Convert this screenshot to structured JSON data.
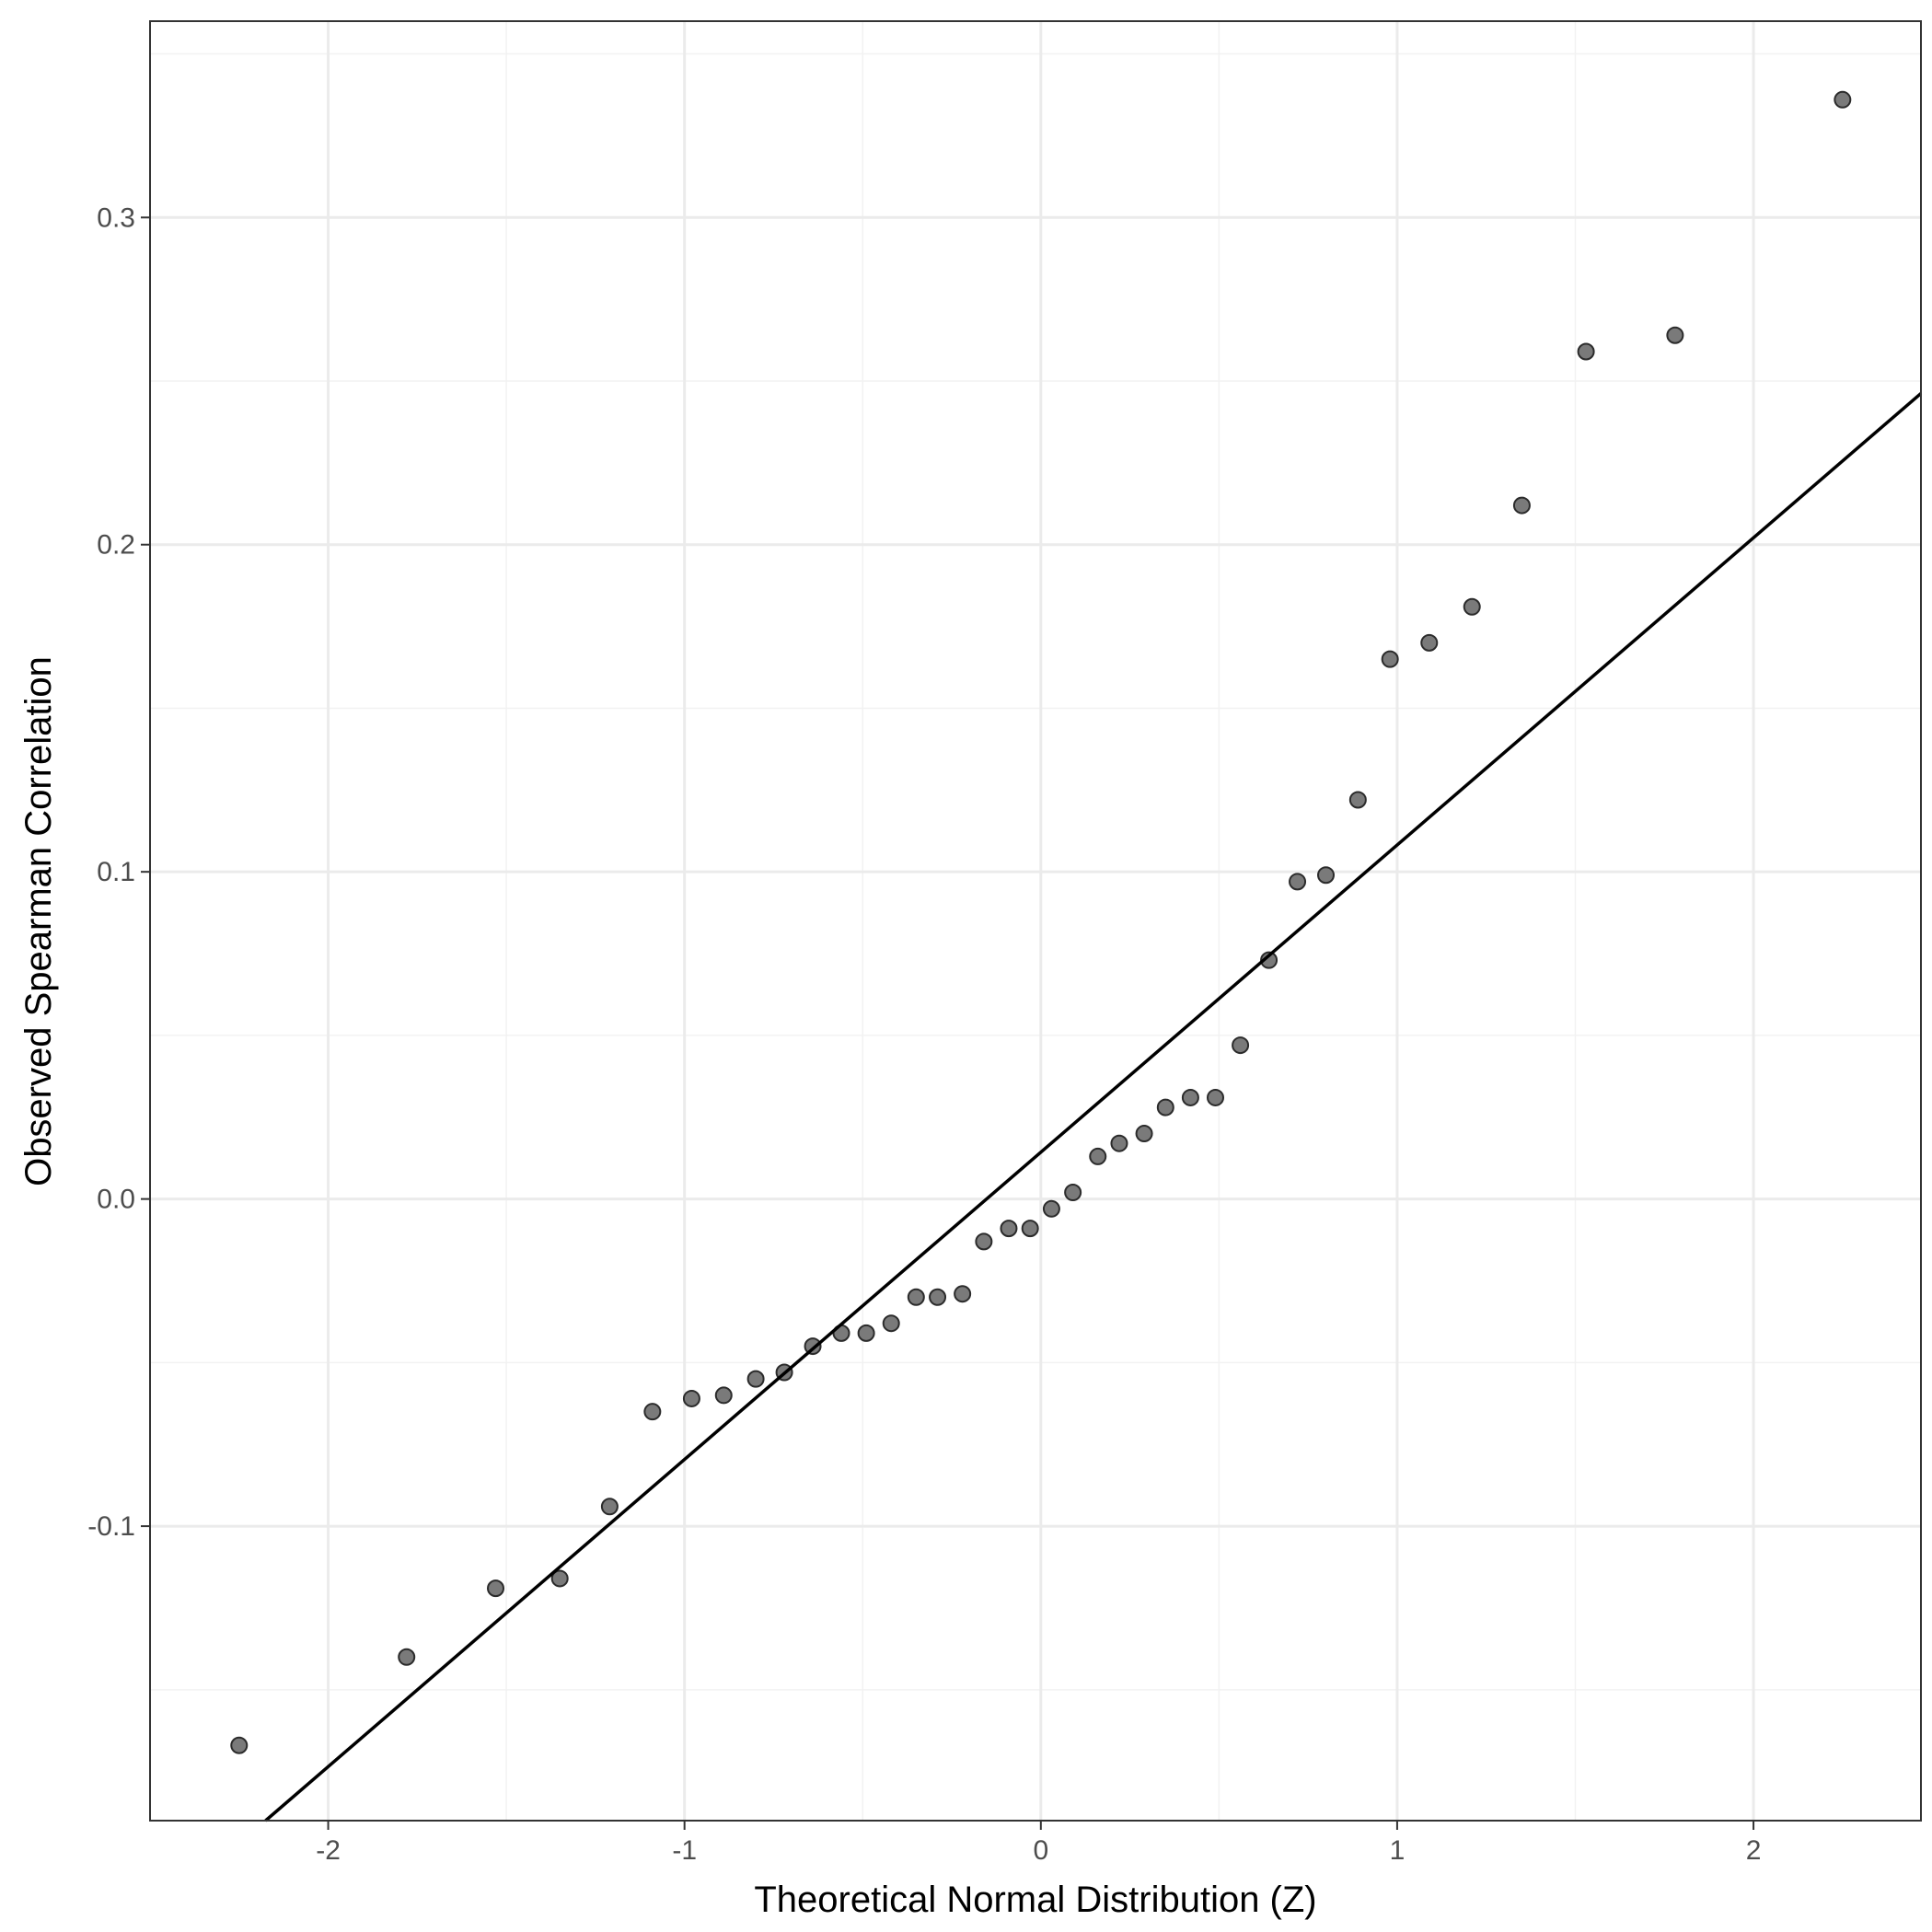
{
  "chart_data": {
    "type": "scatter",
    "xlabel": "Theoretical Normal Distribution (Z)",
    "ylabel": "Observed Spearman Correlation",
    "xlim": [
      -2.5,
      2.47
    ],
    "ylim": [
      -0.19,
      0.36
    ],
    "x_ticks": [
      -2,
      -1,
      0,
      1,
      2
    ],
    "x_tick_labels": [
      "-2",
      "-1",
      "0",
      "1",
      "2"
    ],
    "y_ticks": [
      -0.1,
      0.0,
      0.1,
      0.2,
      0.3
    ],
    "y_tick_labels": [
      "-0.1",
      "0.0",
      "0.1",
      "0.2",
      "0.3"
    ],
    "grid": true,
    "reference_line": {
      "intercept": 0.0143,
      "slope": 0.0939
    },
    "points": {
      "x": [
        -2.25,
        -1.78,
        -1.53,
        -1.35,
        -1.21,
        -1.09,
        -0.98,
        -0.89,
        -0.8,
        -0.72,
        -0.64,
        -0.56,
        -0.49,
        -0.42,
        -0.35,
        -0.29,
        -0.22,
        -0.16,
        -0.09,
        -0.03,
        0.03,
        0.09,
        0.16,
        0.22,
        0.29,
        0.35,
        0.42,
        0.49,
        0.56,
        0.64,
        0.72,
        0.8,
        0.89,
        0.98,
        1.09,
        1.21,
        1.35,
        1.53,
        1.78,
        2.25
      ],
      "y": [
        -0.167,
        -0.14,
        -0.119,
        -0.116,
        -0.094,
        -0.065,
        -0.061,
        -0.06,
        -0.055,
        -0.053,
        -0.045,
        -0.041,
        -0.041,
        -0.038,
        -0.03,
        -0.03,
        -0.029,
        -0.013,
        -0.009,
        -0.009,
        -0.003,
        0.002,
        0.013,
        0.017,
        0.02,
        0.028,
        0.031,
        0.031,
        0.047,
        0.073,
        0.097,
        0.099,
        0.122,
        0.165,
        0.17,
        0.181,
        0.212,
        0.259,
        0.264,
        0.336
      ]
    }
  }
}
